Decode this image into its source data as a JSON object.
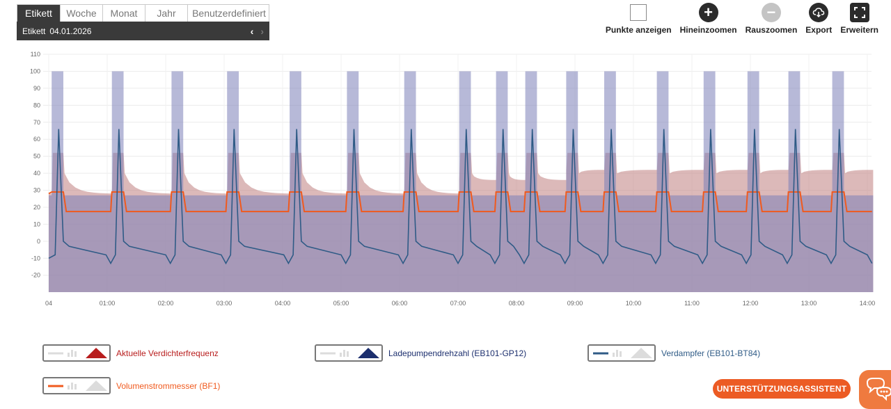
{
  "period": {
    "tabs": [
      "Etikett",
      "Woche",
      "Monat",
      "Jahr",
      "Benutzerdefiniert"
    ],
    "active_tab": "Etikett",
    "date_label": "Etikett",
    "date_value": "04.01.2026",
    "prev_icon": "chevron-left-icon",
    "next_icon": "chevron-right-icon"
  },
  "toolbar": {
    "show_points": "Punkte anzeigen",
    "zoom_in": "Hineinzoomen",
    "zoom_out": "Rauszoomen",
    "export": "Export",
    "expand": "Erweitern"
  },
  "chart_data": {
    "type": "line",
    "ylim": [
      -25,
      110
    ],
    "y_ticks": [
      "110",
      "100",
      "90",
      "80",
      "70",
      "60",
      "50",
      "40",
      "30",
      "20",
      "10",
      "0",
      "-10",
      "-20"
    ],
    "x_ticks": [
      "04",
      "01:00",
      "02:00",
      "03:00",
      "04:00",
      "05:00",
      "06:00",
      "07:00",
      "08:00",
      "09:00",
      "10:00",
      "11:00",
      "12:00",
      "13:00",
      "14:00"
    ],
    "pulse_starts_h": [
      0.05,
      1.08,
      2.1,
      3.05,
      4.12,
      5.1,
      6.08,
      7.02,
      7.65,
      8.15,
      8.85,
      9.5,
      10.4,
      11.2,
      11.95,
      12.65,
      13.4
    ],
    "series": [
      {
        "name": "Aktuelle Verdichterfrequenz",
        "color": "#c48a8a",
        "baseline": 28,
        "peak": 52
      },
      {
        "name": "Ladepumpendrehzahl (EB101-GP12)",
        "color": "#7b7fb8",
        "on_value": 100,
        "off_value": 27
      },
      {
        "name": "Verdampfer (EB101-BT84)",
        "color": "#2f5b86",
        "peak": 66,
        "low": -3
      },
      {
        "name": "Volumenstrommesser (BF1)",
        "color": "#f05a1e",
        "on_value": 29,
        "off_value": 17.5
      }
    ]
  },
  "legend": [
    {
      "label": "Aktuelle Verdichterfrequenz",
      "color": "#b81d1d",
      "mountain": "#b81d1d",
      "line": "#dcdcdc"
    },
    {
      "label": "Ladepumpendrehzahl (EB101-GP12)",
      "color": "#1c2f6e",
      "mountain": "#1c2f6e",
      "line": "#dcdcdc"
    },
    {
      "label": "Verdampfer (EB101-BT84)",
      "color": "#2f5b86",
      "mountain": "#dcdcdc",
      "line": "#2f5b86"
    },
    {
      "label": "Volumenstrommesser (BF1)",
      "color": "#f05a1e",
      "mountain": "#dcdcdc",
      "line": "#f05a1e"
    }
  ],
  "assistant_button": "UNTERSTÜTZUNGSASSISTENT",
  "chat_icon": "chat-bubbles-icon"
}
